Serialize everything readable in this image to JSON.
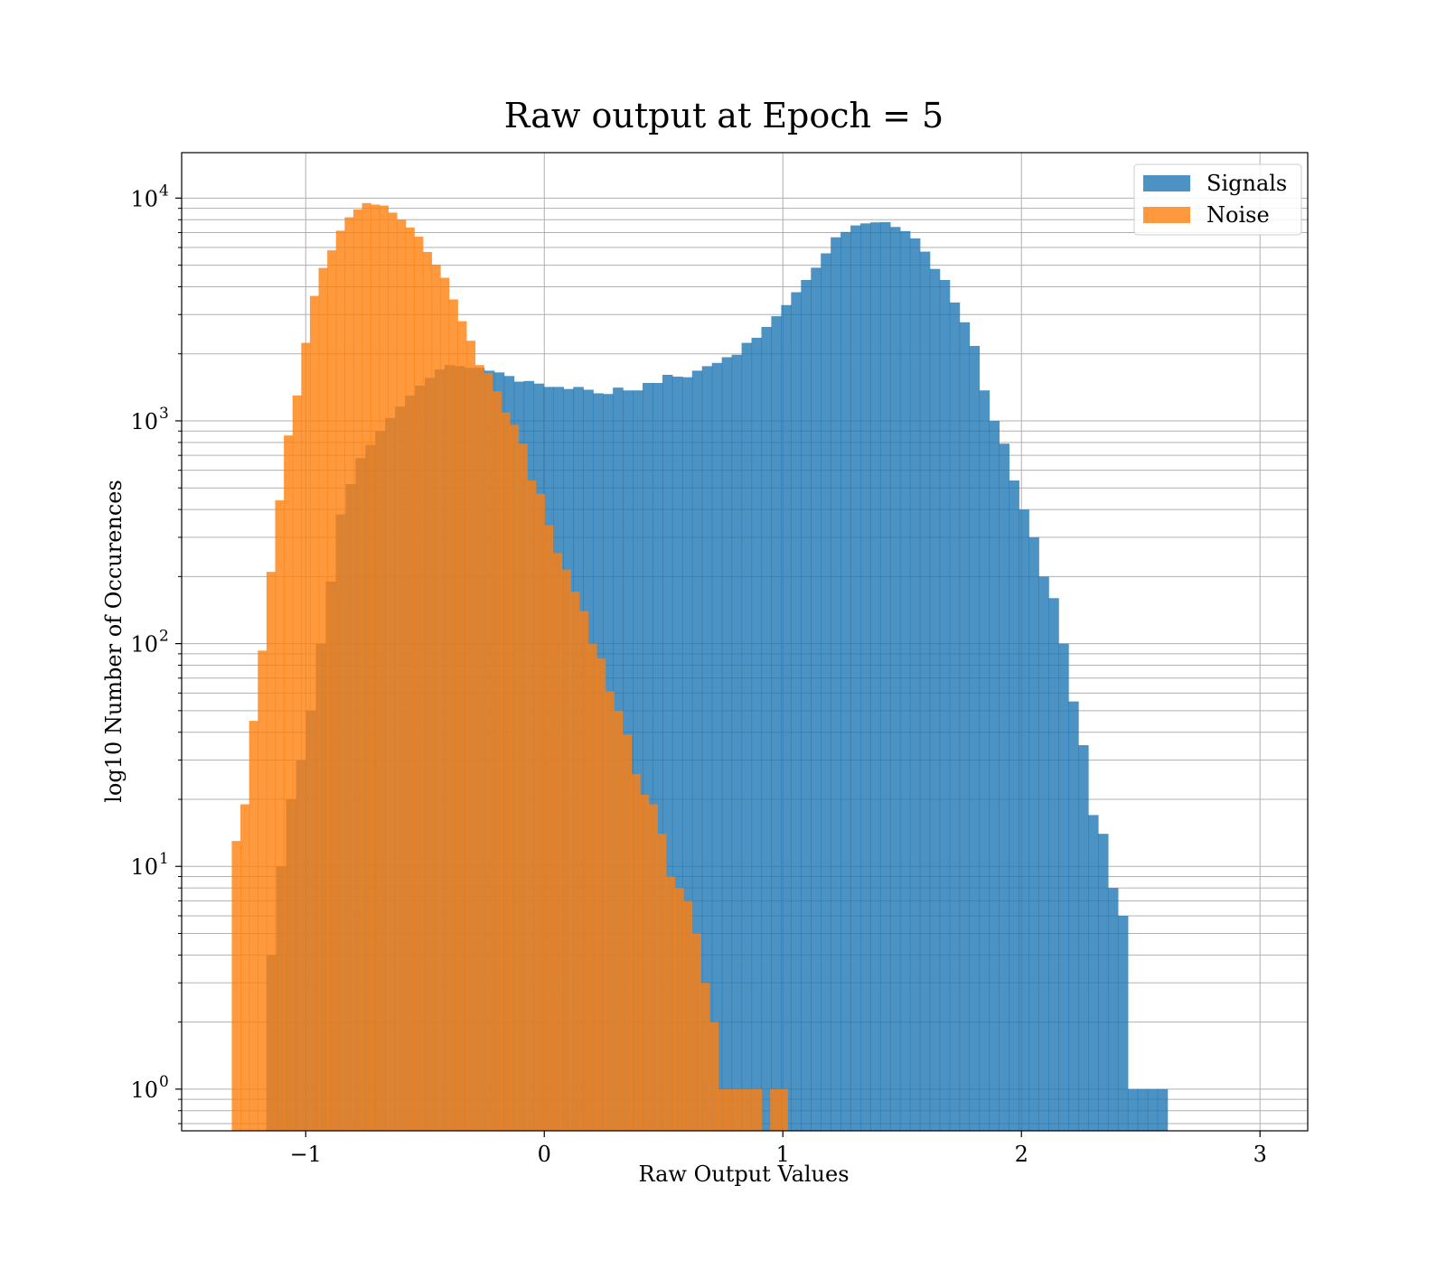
{
  "chart_data": {
    "type": "histogram",
    "title": "Raw output at Epoch = 5",
    "xlabel": "Raw Output Values",
    "ylabel": "log10 Number of Occurences",
    "xlim": [
      -1.52,
      3.2
    ],
    "ylim": [
      0.65,
      16000
    ],
    "yscale": "log",
    "grid": true,
    "legend_position": "top-right",
    "x_ticks": [
      {
        "value": -1,
        "label": "−1"
      },
      {
        "value": 0,
        "label": "0"
      },
      {
        "value": 1,
        "label": "1"
      },
      {
        "value": 2,
        "label": "2"
      },
      {
        "value": 3,
        "label": "3"
      }
    ],
    "y_ticks": [
      {
        "value": 1,
        "base": "10",
        "exp": "0"
      },
      {
        "value": 10,
        "base": "10",
        "exp": "1"
      },
      {
        "value": 100,
        "base": "10",
        "exp": "2"
      },
      {
        "value": 1000,
        "base": "10",
        "exp": "3"
      },
      {
        "value": 10000,
        "base": "10",
        "exp": "4"
      }
    ],
    "series": [
      {
        "name": "Signals",
        "color": "#1f77b4",
        "opacity": 0.8,
        "bin_start": -1.165,
        "bin_width": 0.0415,
        "counts": [
          4,
          10,
          20,
          30,
          50,
          100,
          190,
          380,
          520,
          680,
          780,
          900,
          1030,
          1160,
          1300,
          1440,
          1560,
          1700,
          1780,
          1760,
          1730,
          1730,
          1680,
          1650,
          1590,
          1500,
          1510,
          1470,
          1420,
          1420,
          1390,
          1420,
          1380,
          1330,
          1320,
          1410,
          1370,
          1370,
          1480,
          1480,
          1610,
          1580,
          1570,
          1680,
          1760,
          1820,
          1930,
          1980,
          2240,
          2360,
          2640,
          2950,
          3310,
          3780,
          4290,
          4870,
          5650,
          6670,
          7050,
          7540,
          7700,
          7780,
          7800,
          7420,
          7110,
          6590,
          5750,
          4810,
          4290,
          3400,
          2770,
          2170,
          1370,
          1000,
          790,
          540,
          400,
          300,
          200,
          160,
          100,
          55,
          35,
          17,
          14,
          8,
          6,
          1,
          1,
          1,
          1
        ]
      },
      {
        "name": "Noise",
        "color": "#ff7f0e",
        "opacity": 0.8,
        "bin_start": -1.31,
        "bin_width": 0.0364,
        "counts": [
          13,
          19,
          45,
          93,
          210,
          440,
          860,
          1300,
          2240,
          3640,
          4860,
          5830,
          7140,
          8200,
          8890,
          9500,
          9350,
          9260,
          8610,
          8010,
          7380,
          6710,
          5730,
          5030,
          4390,
          3510,
          2800,
          2290,
          1780,
          1640,
          1360,
          1090,
          960,
          790,
          540,
          470,
          340,
          255,
          215,
          171,
          140,
          100,
          86,
          61,
          50,
          39,
          26,
          21,
          19,
          14,
          9,
          8,
          7,
          5,
          3,
          2,
          1,
          1,
          1,
          1,
          1,
          0,
          1,
          1
        ]
      }
    ]
  }
}
